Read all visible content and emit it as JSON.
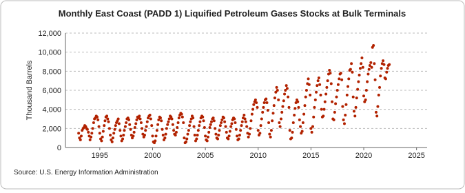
{
  "chart_data": {
    "type": "scatter",
    "title": "Monthly East Coast (PADD 1) Liquified Petroleum Gases Stocks at Bulk Terminals",
    "y_label": "Thousand Barrels",
    "source": "Source: U.S. Energy Information Administration",
    "color": "#b22200",
    "grid": true,
    "xlim": [
      1991.75,
      2026
    ],
    "ylim": [
      0,
      12000
    ],
    "xticks": [
      1995,
      2000,
      2005,
      2010,
      2015,
      2020,
      2025
    ],
    "yticks": [
      0,
      {
        "value": 2000,
        "label": "2,000"
      },
      {
        "value": 4000,
        "label": "4,000"
      },
      {
        "value": 6000,
        "label": "6,000"
      },
      {
        "value": 8000,
        "label": "8,000"
      },
      {
        "value": 10000,
        "label": "10,000"
      },
      {
        "value": 12000,
        "label": "12,000"
      }
    ],
    "x": [
      1993.0,
      1993.08,
      1993.17,
      1993.25,
      1993.33,
      1993.42,
      1993.5,
      1993.58,
      1993.67,
      1993.75,
      1993.83,
      1993.92,
      1994.0,
      1994.08,
      1994.17,
      1994.25,
      1994.33,
      1994.42,
      1994.5,
      1994.58,
      1994.67,
      1994.75,
      1994.83,
      1994.92,
      1995.0,
      1995.08,
      1995.17,
      1995.25,
      1995.33,
      1995.42,
      1995.5,
      1995.58,
      1995.67,
      1995.75,
      1995.83,
      1995.92,
      1996.0,
      1996.08,
      1996.17,
      1996.25,
      1996.33,
      1996.42,
      1996.5,
      1996.58,
      1996.67,
      1996.75,
      1996.83,
      1996.92,
      1997.0,
      1997.08,
      1997.17,
      1997.25,
      1997.33,
      1997.42,
      1997.5,
      1997.58,
      1997.67,
      1997.75,
      1997.83,
      1997.92,
      1998.0,
      1998.08,
      1998.17,
      1998.25,
      1998.33,
      1998.42,
      1998.5,
      1998.58,
      1998.67,
      1998.75,
      1998.83,
      1998.92,
      1999.0,
      1999.08,
      1999.17,
      1999.25,
      1999.33,
      1999.42,
      1999.5,
      1999.58,
      1999.67,
      1999.75,
      1999.83,
      1999.92,
      2000.0,
      2000.08,
      2000.17,
      2000.25,
      2000.33,
      2000.42,
      2000.5,
      2000.58,
      2000.67,
      2000.75,
      2000.83,
      2000.92,
      2001.0,
      2001.08,
      2001.17,
      2001.25,
      2001.33,
      2001.42,
      2001.5,
      2001.58,
      2001.67,
      2001.75,
      2001.83,
      2001.92,
      2002.0,
      2002.08,
      2002.17,
      2002.25,
      2002.33,
      2002.42,
      2002.5,
      2002.58,
      2002.67,
      2002.75,
      2002.83,
      2002.92,
      2003.0,
      2003.08,
      2003.17,
      2003.25,
      2003.33,
      2003.42,
      2003.5,
      2003.58,
      2003.67,
      2003.75,
      2003.83,
      2003.92,
      2004.0,
      2004.08,
      2004.17,
      2004.25,
      2004.33,
      2004.42,
      2004.5,
      2004.58,
      2004.67,
      2004.75,
      2004.83,
      2004.92,
      2005.0,
      2005.08,
      2005.17,
      2005.25,
      2005.33,
      2005.42,
      2005.5,
      2005.58,
      2005.67,
      2005.75,
      2005.83,
      2005.92,
      2006.0,
      2006.08,
      2006.17,
      2006.25,
      2006.33,
      2006.42,
      2006.5,
      2006.58,
      2006.67,
      2006.75,
      2006.83,
      2006.92,
      2007.0,
      2007.08,
      2007.17,
      2007.25,
      2007.33,
      2007.42,
      2007.5,
      2007.58,
      2007.67,
      2007.75,
      2007.83,
      2007.92,
      2008.0,
      2008.08,
      2008.17,
      2008.25,
      2008.33,
      2008.42,
      2008.5,
      2008.58,
      2008.67,
      2008.75,
      2008.83,
      2008.92,
      2009.0,
      2009.08,
      2009.17,
      2009.25,
      2009.33,
      2009.42,
      2009.5,
      2009.58,
      2009.67,
      2009.75,
      2009.83,
      2009.92,
      2010.0,
      2010.08,
      2010.17,
      2010.25,
      2010.33,
      2010.42,
      2010.5,
      2010.58,
      2010.67,
      2010.75,
      2010.83,
      2010.92,
      2011.0,
      2011.08,
      2011.17,
      2011.25,
      2011.33,
      2011.42,
      2011.5,
      2011.58,
      2011.67,
      2011.75,
      2011.83,
      2011.92,
      2012.0,
      2012.08,
      2012.17,
      2012.25,
      2012.33,
      2012.42,
      2012.5,
      2012.58,
      2012.67,
      2012.75,
      2012.83,
      2012.92,
      2013.0,
      2013.08,
      2013.17,
      2013.25,
      2013.33,
      2013.42,
      2013.5,
      2013.58,
      2013.67,
      2013.75,
      2013.83,
      2013.92,
      2014.0,
      2014.08,
      2014.17,
      2014.25,
      2014.33,
      2014.42,
      2014.5,
      2014.58,
      2014.67,
      2014.75,
      2014.83,
      2014.92,
      2015.0,
      2015.08,
      2015.17,
      2015.25,
      2015.33,
      2015.42,
      2015.5,
      2015.58,
      2015.67,
      2015.75,
      2015.83,
      2015.92,
      2016.0,
      2016.08,
      2016.17,
      2016.25,
      2016.33,
      2016.42,
      2016.5,
      2016.58,
      2016.67,
      2016.75,
      2016.83,
      2016.92,
      2017.0,
      2017.08,
      2017.17,
      2017.25,
      2017.33,
      2017.42,
      2017.5,
      2017.58,
      2017.67,
      2017.75,
      2017.83,
      2017.92,
      2018.0,
      2018.08,
      2018.17,
      2018.25,
      2018.33,
      2018.42,
      2018.5,
      2018.58,
      2018.67,
      2018.75,
      2018.83,
      2018.92,
      2019.0,
      2019.08,
      2019.17,
      2019.25,
      2019.33,
      2019.42,
      2019.5,
      2019.58,
      2019.67,
      2019.75,
      2019.83,
      2019.92,
      2020.0,
      2020.08,
      2020.17,
      2020.25,
      2020.33,
      2020.42,
      2020.5,
      2020.58,
      2020.67,
      2020.75,
      2020.83,
      2020.92,
      2021.0,
      2021.08,
      2021.17,
      2021.25,
      2021.33,
      2021.42,
      2021.5,
      2021.58,
      2021.67,
      2021.75,
      2021.83,
      2021.92,
      2022.0,
      2022.08,
      2022.17,
      2022.25,
      2022.33,
      2022.42
    ],
    "values": [
      1500,
      1000,
      800,
      1200,
      1800,
      2000,
      2100,
      2300,
      2200,
      2000,
      1900,
      1600,
      1200,
      800,
      1100,
      1500,
      2000,
      2600,
      3000,
      3100,
      3300,
      3200,
      2900,
      2200,
      1500,
      900,
      700,
      1100,
      1700,
      2300,
      2800,
      3200,
      3300,
      3000,
      2700,
      2000,
      1300,
      800,
      600,
      1000,
      1500,
      1900,
      2300,
      2600,
      2800,
      3000,
      2500,
      1800,
      1200,
      700,
      900,
      1300,
      1800,
      2200,
      2600,
      3000,
      3100,
      2900,
      2400,
      1900,
      1300,
      1000,
      1200,
      1600,
      2100,
      2500,
      2900,
      3200,
      3100,
      3300,
      3000,
      2600,
      2000,
      1400,
      1100,
      1300,
      1800,
      2200,
      2700,
      3100,
      3300,
      3400,
      3000,
      2300,
      1200,
      600,
      500,
      700,
      1200,
      1800,
      2400,
      2900,
      3200,
      3100,
      2800,
      1900,
      1300,
      800,
      1000,
      1400,
      2000,
      2400,
      2700,
      3000,
      3300,
      3200,
      3000,
      2400,
      1800,
      1400,
      1300,
      1600,
      2100,
      2600,
      3100,
      3400,
      3600,
      3500,
      3200,
      2600,
      1000,
      500,
      600,
      900,
      1400,
      1800,
      2300,
      2700,
      3000,
      3300,
      3100,
      2200,
      1300,
      700,
      900,
      1300,
      1800,
      2300,
      2700,
      3100,
      3300,
      3200,
      2800,
      2100,
      1200,
      800,
      700,
      1100,
      1600,
      2100,
      2400,
      2700,
      3000,
      3100,
      2800,
      2000,
      1400,
      1000,
      900,
      1300,
      1800,
      2300,
      2600,
      2900,
      3200,
      3100,
      2700,
      2200,
      1600,
      1000,
      900,
      1200,
      1700,
      2200,
      2500,
      2900,
      3100,
      3000,
      2600,
      1900,
      1200,
      800,
      900,
      1300,
      1800,
      2300,
      2700,
      3100,
      3400,
      3000,
      2700,
      2200,
      1500,
      1100,
      1400,
      2000,
      2800,
      3500,
      4000,
      4500,
      4800,
      5000,
      4700,
      4200,
      1800,
      1300,
      1500,
      2300,
      3000,
      3700,
      4200,
      4700,
      5000,
      5100,
      4700,
      3900,
      2600,
      1400,
      1100,
      1800,
      2800,
      3600,
      4400,
      5200,
      5800,
      6300,
      6000,
      5000,
      2600,
      2200,
      3000,
      3700,
      4300,
      4900,
      5600,
      6000,
      6500,
      6200,
      5300,
      4200,
      1800,
      900,
      1000,
      1600,
      2600,
      3400,
      4100,
      4700,
      5000,
      4800,
      4200,
      2900,
      2200,
      1500,
      1700,
      2600,
      3500,
      4400,
      5300,
      6000,
      6700,
      7200,
      6600,
      5500,
      2000,
      1600,
      2200,
      3200,
      4200,
      5000,
      5800,
      6500,
      7000,
      7300,
      6600,
      5500,
      4000,
      3200,
      3300,
      4000,
      4800,
      5600,
      6300,
      7000,
      7700,
      8100,
      7800,
      6700,
      4800,
      3000,
      2900,
      3700,
      4600,
      5300,
      6000,
      6600,
      7200,
      7700,
      7800,
      7100,
      4300,
      2900,
      2500,
      3400,
      4500,
      5500,
      6400,
      7200,
      8100,
      8200,
      8800,
      7900,
      5300,
      3800,
      3300,
      4200,
      5200,
      6100,
      6900,
      7600,
      8300,
      8800,
      9400,
      8400,
      5400,
      4800,
      5000,
      6000,
      6900,
      7700,
      8200,
      8600,
      8900,
      8400,
      10500,
      10700,
      8800,
      7100,
      3700,
      3300,
      4300,
      5500,
      6300,
      7500,
      8300,
      8800,
      9100,
      8700,
      7300,
      7200,
      7900,
      8300,
      8600,
      8700
    ]
  }
}
